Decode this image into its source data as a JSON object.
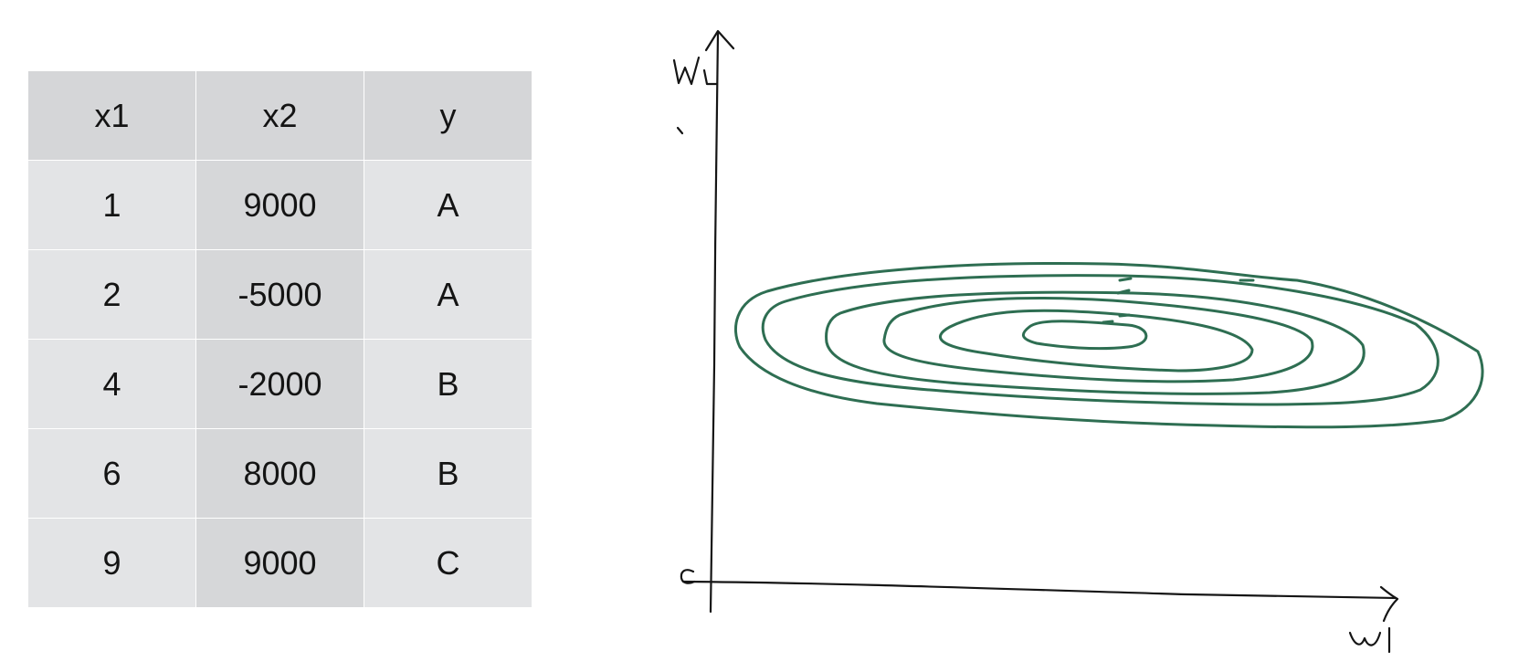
{
  "table": {
    "headers": [
      "x1",
      "x2",
      "y"
    ],
    "rows": [
      [
        "1",
        "9000",
        "A"
      ],
      [
        "2",
        "-5000",
        "A"
      ],
      [
        "4",
        "-2000",
        "B"
      ],
      [
        "6",
        "8000",
        "B"
      ],
      [
        "9",
        "9000",
        "C"
      ]
    ]
  },
  "diagram": {
    "contour_color": "#2e6e52",
    "ink_color": "#151515",
    "contour_count": 6
  }
}
